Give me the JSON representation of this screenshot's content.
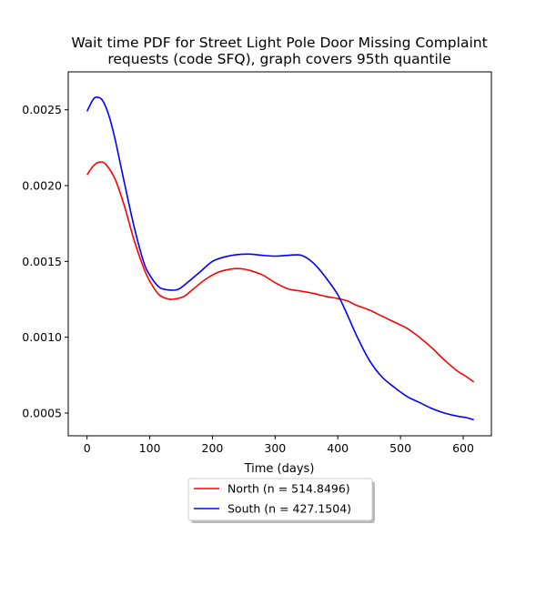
{
  "chart_data": {
    "type": "line",
    "title_line1": "Wait time PDF for Street Light Pole Door Missing Complaint",
    "title_line2": "requests (code SFQ), graph covers 95th quantile",
    "xlabel": "Time (days)",
    "ylabel": "",
    "xlim": [
      -30,
      645
    ],
    "ylim": [
      0.00035,
      0.00275
    ],
    "x_ticks": [
      0,
      100,
      200,
      300,
      400,
      500,
      600
    ],
    "x_tick_labels": [
      "0",
      "100",
      "200",
      "300",
      "400",
      "500",
      "600"
    ],
    "y_ticks": [
      0.0005,
      0.001,
      0.0015,
      0.002,
      0.0025
    ],
    "y_tick_labels": [
      "0.0005",
      "0.0010",
      "0.0015",
      "0.0020",
      "0.0025"
    ],
    "grid": false,
    "legend_position": "below-center",
    "series": [
      {
        "name": "North (n = 514.8496)",
        "color": "#ff0000",
        "x": [
          0,
          10,
          20,
          30,
          45,
          60,
          75,
          90,
          100,
          115,
          130,
          140,
          155,
          170,
          190,
          210,
          230,
          245,
          260,
          280,
          300,
          320,
          340,
          360,
          380,
          400,
          415,
          430,
          450,
          470,
          490,
          510,
          530,
          550,
          570,
          590,
          605,
          617
        ],
        "y": [
          0.00207,
          0.00213,
          0.002155,
          0.00214,
          0.00204,
          0.00186,
          0.00164,
          0.00146,
          0.00137,
          0.00128,
          0.001252,
          0.001252,
          0.00127,
          0.00132,
          0.001385,
          0.00143,
          0.00145,
          0.001452,
          0.00144,
          0.00141,
          0.00136,
          0.00132,
          0.001305,
          0.00129,
          0.00127,
          0.001255,
          0.00124,
          0.00121,
          0.00118,
          0.00114,
          0.0011,
          0.00106,
          0.001,
          0.00093,
          0.00085,
          0.00078,
          0.00074,
          0.000705
        ]
      },
      {
        "name": "South (n = 427.1504)",
        "color": "#0000ff",
        "x": [
          0,
          10,
          17,
          25,
          35,
          45,
          60,
          75,
          90,
          100,
          115,
          130,
          145,
          160,
          180,
          200,
          220,
          240,
          260,
          280,
          300,
          320,
          340,
          355,
          370,
          385,
          400,
          415,
          430,
          450,
          470,
          490,
          510,
          530,
          550,
          570,
          590,
          605,
          617
        ],
        "y": [
          0.00249,
          0.00257,
          0.002582,
          0.00256,
          0.00246,
          0.0023,
          0.00201,
          0.00173,
          0.0015,
          0.00141,
          0.00133,
          0.001312,
          0.001315,
          0.00136,
          0.00143,
          0.0015,
          0.00153,
          0.001545,
          0.001548,
          0.00154,
          0.001535,
          0.00154,
          0.001542,
          0.00151,
          0.00145,
          0.00137,
          0.00128,
          0.00115,
          0.00101,
          0.00085,
          0.00074,
          0.00067,
          0.00061,
          0.00057,
          0.00053,
          0.0005,
          0.00048,
          0.00047,
          0.000455
        ]
      }
    ]
  }
}
